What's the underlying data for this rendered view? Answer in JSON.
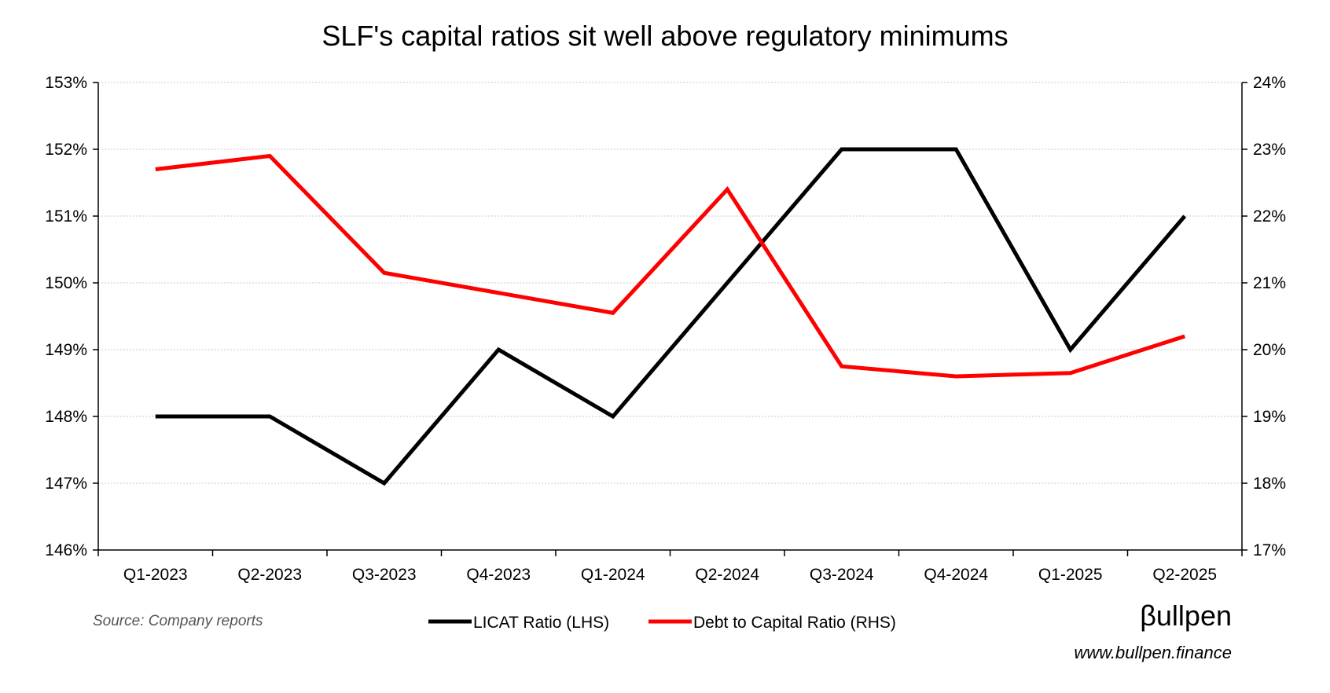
{
  "colors": {
    "licat": "#000000",
    "debt": "#ff0000",
    "grid": "#c8c8c8",
    "axis": "#000000"
  },
  "chart_data": {
    "type": "line",
    "title": "SLF's capital ratios sit well above regulatory minimums",
    "categories": [
      "Q1-2023",
      "Q2-2023",
      "Q3-2023",
      "Q4-2023",
      "Q1-2024",
      "Q2-2024",
      "Q3-2024",
      "Q4-2024",
      "Q1-2025",
      "Q2-2025"
    ],
    "series": [
      {
        "name": "LICAT Ratio (LHS)",
        "axis": "left",
        "values": [
          148,
          148,
          147,
          149,
          148,
          150,
          152,
          152,
          149,
          151
        ]
      },
      {
        "name": "Debt to Capital Ratio (RHS)",
        "axis": "right",
        "values": [
          22.7,
          22.9,
          21.15,
          20.85,
          20.55,
          22.4,
          19.75,
          19.6,
          19.65,
          20.2
        ]
      }
    ],
    "ylim_left": [
      146,
      153
    ],
    "ylim_right": [
      17,
      24
    ],
    "left_ticks": [
      "146%",
      "147%",
      "148%",
      "149%",
      "150%",
      "151%",
      "152%",
      "153%"
    ],
    "right_ticks": [
      "17%",
      "18%",
      "19%",
      "20%",
      "21%",
      "22%",
      "23%",
      "24%"
    ],
    "grid": true,
    "legend_position": "bottom"
  },
  "footer": {
    "source": "Source: Company reports",
    "brand": "βullpen",
    "url": "www.bullpen.finance"
  }
}
